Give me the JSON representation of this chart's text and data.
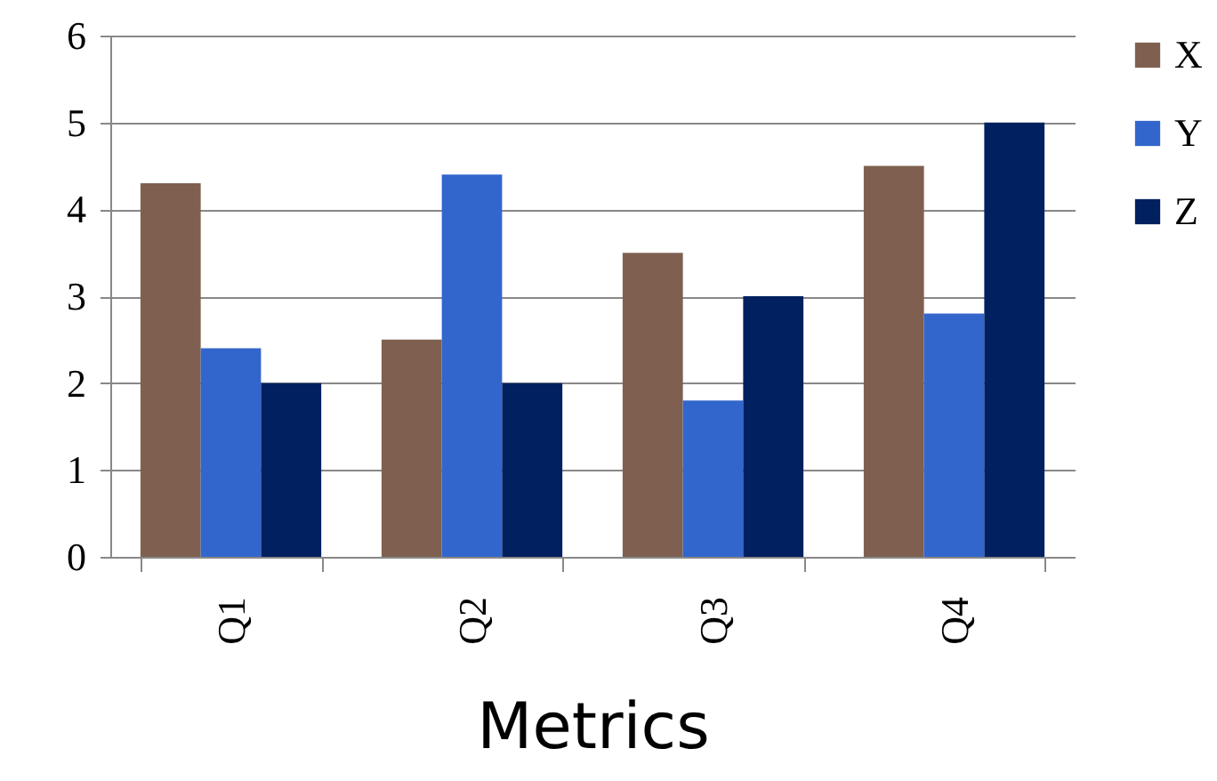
{
  "chart_data": {
    "type": "bar",
    "xlabel": "Metrics",
    "categories": [
      "Q1",
      "Q2",
      "Q3",
      "Q4"
    ],
    "series": [
      {
        "name": "X",
        "color": "#7f6050",
        "values": [
          4.3,
          2.5,
          3.5,
          4.5
        ]
      },
      {
        "name": "Y",
        "color": "#3366cc",
        "values": [
          2.4,
          4.4,
          1.8,
          2.8
        ]
      },
      {
        "name": "Z",
        "color": "#002060",
        "values": [
          2,
          2,
          3,
          5
        ]
      }
    ],
    "ylim": [
      0,
      6
    ],
    "yticks": [
      0,
      1,
      2,
      3,
      4,
      5,
      6
    ],
    "grid": "y",
    "legend": "right"
  }
}
